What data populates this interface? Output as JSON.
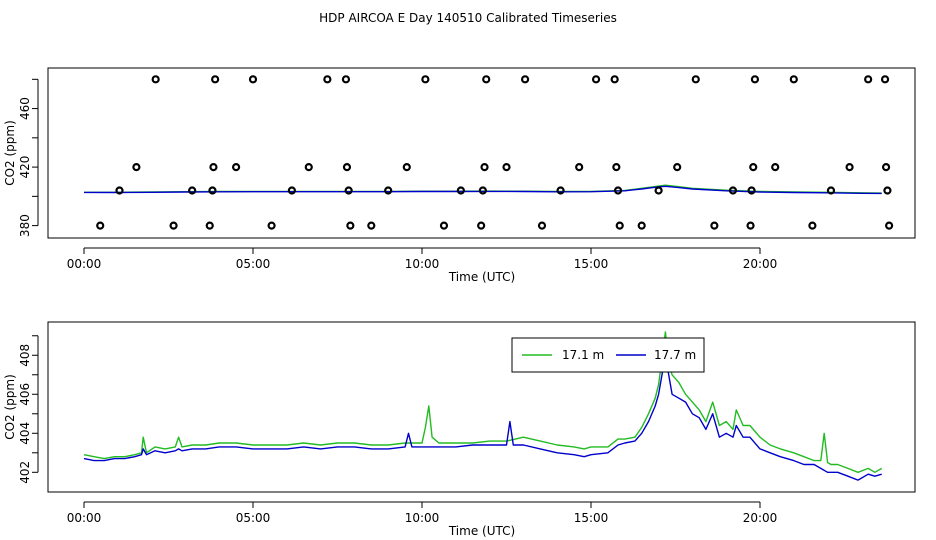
{
  "title": "HDP AIRCOA E  Day 140510  Calibrated Timeseries",
  "chart_data": [
    {
      "type": "scatter",
      "name": "top-panel",
      "xlabel": "Time (UTC)",
      "ylabel": "CO2 (ppm)",
      "xlim": [
        0,
        24
      ],
      "ylim": [
        377,
        485
      ],
      "x_ticks": [
        0,
        5,
        10,
        15,
        20
      ],
      "x_tick_labels": [
        "00:00",
        "05:00",
        "10:00",
        "15:00",
        "20:00"
      ],
      "y_ticks": [
        380,
        420,
        460
      ],
      "y_tick_labels": [
        "380",
        "420",
        "460"
      ],
      "calibration_points": [
        {
          "x": 0.48,
          "y": 380
        },
        {
          "x": 1.05,
          "y": 404
        },
        {
          "x": 1.55,
          "y": 420
        },
        {
          "x": 2.12,
          "y": 480
        },
        {
          "x": 2.65,
          "y": 380
        },
        {
          "x": 3.2,
          "y": 404
        },
        {
          "x": 3.72,
          "y": 380
        },
        {
          "x": 3.8,
          "y": 404
        },
        {
          "x": 3.83,
          "y": 420
        },
        {
          "x": 3.88,
          "y": 480
        },
        {
          "x": 4.5,
          "y": 420
        },
        {
          "x": 5.0,
          "y": 480
        },
        {
          "x": 5.55,
          "y": 380
        },
        {
          "x": 6.15,
          "y": 404
        },
        {
          "x": 6.65,
          "y": 420
        },
        {
          "x": 7.2,
          "y": 480
        },
        {
          "x": 7.75,
          "y": 480
        },
        {
          "x": 7.78,
          "y": 420
        },
        {
          "x": 7.83,
          "y": 404
        },
        {
          "x": 7.88,
          "y": 380
        },
        {
          "x": 8.5,
          "y": 380
        },
        {
          "x": 9.0,
          "y": 404
        },
        {
          "x": 9.55,
          "y": 420
        },
        {
          "x": 10.1,
          "y": 480
        },
        {
          "x": 10.65,
          "y": 380
        },
        {
          "x": 11.15,
          "y": 404
        },
        {
          "x": 11.75,
          "y": 380
        },
        {
          "x": 11.8,
          "y": 404
        },
        {
          "x": 11.85,
          "y": 420
        },
        {
          "x": 11.9,
          "y": 480
        },
        {
          "x": 12.5,
          "y": 420
        },
        {
          "x": 13.05,
          "y": 480
        },
        {
          "x": 13.55,
          "y": 380
        },
        {
          "x": 14.1,
          "y": 404
        },
        {
          "x": 14.65,
          "y": 420
        },
        {
          "x": 15.15,
          "y": 480
        },
        {
          "x": 15.7,
          "y": 480
        },
        {
          "x": 15.75,
          "y": 420
        },
        {
          "x": 15.8,
          "y": 404
        },
        {
          "x": 15.85,
          "y": 380
        },
        {
          "x": 16.5,
          "y": 380
        },
        {
          "x": 17.0,
          "y": 404
        },
        {
          "x": 17.55,
          "y": 420
        },
        {
          "x": 18.1,
          "y": 480
        },
        {
          "x": 18.65,
          "y": 380
        },
        {
          "x": 19.2,
          "y": 404
        },
        {
          "x": 19.72,
          "y": 380
        },
        {
          "x": 19.75,
          "y": 404
        },
        {
          "x": 19.8,
          "y": 420
        },
        {
          "x": 19.85,
          "y": 480
        },
        {
          "x": 20.45,
          "y": 420
        },
        {
          "x": 21.0,
          "y": 480
        },
        {
          "x": 21.55,
          "y": 380
        },
        {
          "x": 22.1,
          "y": 404
        },
        {
          "x": 22.65,
          "y": 420
        },
        {
          "x": 23.2,
          "y": 480
        },
        {
          "x": 23.7,
          "y": 480
        },
        {
          "x": 23.73,
          "y": 420
        },
        {
          "x": 23.77,
          "y": 404
        },
        {
          "x": 23.82,
          "y": 380
        }
      ],
      "series": [
        {
          "name": "17.1 m",
          "color": "#22bb22",
          "x": [
            0,
            1,
            2,
            3,
            4,
            5,
            6,
            7,
            8,
            9,
            10,
            11,
            12,
            13,
            14,
            15,
            16,
            16.5,
            17,
            17.2,
            17.6,
            18,
            19,
            20,
            21,
            22,
            23,
            23.6
          ],
          "values": [
            402.8,
            402.8,
            403.0,
            403.2,
            403.3,
            403.4,
            403.4,
            403.4,
            403.4,
            403.4,
            403.5,
            403.5,
            403.6,
            403.5,
            403.3,
            403.4,
            404.0,
            405.5,
            407.0,
            407.6,
            406.6,
            405.5,
            404.2,
            403.4,
            403.0,
            402.8,
            402.4,
            402.2
          ]
        },
        {
          "name": "17.7 m",
          "color": "#0000cc",
          "x": [
            0,
            1,
            2,
            3,
            4,
            5,
            6,
            7,
            8,
            9,
            10,
            11,
            12,
            13,
            14,
            15,
            16,
            16.5,
            17,
            17.2,
            17.6,
            18,
            19,
            20,
            21,
            22,
            23,
            23.6
          ],
          "values": [
            402.7,
            402.6,
            402.8,
            403.0,
            403.1,
            403.2,
            403.2,
            403.2,
            403.2,
            403.2,
            403.3,
            403.3,
            403.4,
            403.3,
            403.1,
            403.2,
            403.8,
            405.0,
            406.5,
            406.9,
            406.0,
            405.0,
            403.8,
            403.0,
            402.6,
            402.4,
            402.1,
            402.0
          ]
        }
      ]
    },
    {
      "type": "line",
      "name": "bottom-panel",
      "xlabel": "Time (UTC)",
      "ylabel": "CO2 (ppm)",
      "xlim": [
        0,
        24
      ],
      "ylim": [
        401.4,
        409.5
      ],
      "x_ticks": [
        0,
        5,
        10,
        15,
        20
      ],
      "x_tick_labels": [
        "00:00",
        "05:00",
        "10:00",
        "15:00",
        "20:00"
      ],
      "y_ticks": [
        402,
        404,
        406,
        408
      ],
      "y_tick_labels": [
        "402",
        "404",
        "406",
        "408"
      ],
      "legend_position": "top-right",
      "series": [
        {
          "name": "17.1 m",
          "color": "#22bb22",
          "x": [
            0,
            0.3,
            0.6,
            0.9,
            1.2,
            1.5,
            1.7,
            1.75,
            1.85,
            2.1,
            2.4,
            2.7,
            2.8,
            2.9,
            3.2,
            3.6,
            4.0,
            4.5,
            5.0,
            5.5,
            6.0,
            6.5,
            7.0,
            7.5,
            8.0,
            8.5,
            9.0,
            9.5,
            10.0,
            10.1,
            10.2,
            10.3,
            10.5,
            11.0,
            11.5,
            12.0,
            12.5,
            13.0,
            13.5,
            14.0,
            14.5,
            14.8,
            15.0,
            15.5,
            15.8,
            16.0,
            16.3,
            16.5,
            16.7,
            16.9,
            17.0,
            17.1,
            17.2,
            17.3,
            17.4,
            17.6,
            17.8,
            18.0,
            18.2,
            18.4,
            18.6,
            18.8,
            19.0,
            19.2,
            19.3,
            19.5,
            19.7,
            20.0,
            20.3,
            20.6,
            21.0,
            21.3,
            21.6,
            21.8,
            21.9,
            22.0,
            22.1,
            22.3,
            22.6,
            22.9,
            23.2,
            23.4,
            23.6
          ],
          "values": [
            402.9,
            402.8,
            402.7,
            402.8,
            402.8,
            402.9,
            403.0,
            403.8,
            403.0,
            403.3,
            403.2,
            403.3,
            403.8,
            403.3,
            403.4,
            403.4,
            403.5,
            403.5,
            403.4,
            403.4,
            403.4,
            403.5,
            403.4,
            403.5,
            403.5,
            403.4,
            403.4,
            403.5,
            403.5,
            404.3,
            405.4,
            403.8,
            403.5,
            403.5,
            403.5,
            403.6,
            403.6,
            403.8,
            403.6,
            403.4,
            403.3,
            403.2,
            403.3,
            403.3,
            403.7,
            403.7,
            403.8,
            404.3,
            405.0,
            405.8,
            406.5,
            407.8,
            409.2,
            407.6,
            407.0,
            406.6,
            406.0,
            405.6,
            405.2,
            404.6,
            405.6,
            404.4,
            404.6,
            404.2,
            405.2,
            404.4,
            404.4,
            403.8,
            403.4,
            403.2,
            403.0,
            402.8,
            402.6,
            402.6,
            404.0,
            402.5,
            402.4,
            402.4,
            402.2,
            402.0,
            402.2,
            402.0,
            402.2
          ]
        },
        {
          "name": "17.7 m",
          "color": "#0000cc",
          "x": [
            0,
            0.3,
            0.6,
            0.9,
            1.2,
            1.5,
            1.7,
            1.75,
            1.85,
            2.1,
            2.4,
            2.7,
            2.8,
            2.9,
            3.2,
            3.6,
            4.0,
            4.5,
            5.0,
            5.5,
            6.0,
            6.5,
            7.0,
            7.5,
            8.0,
            8.5,
            9.0,
            9.5,
            9.6,
            9.7,
            10.0,
            10.5,
            11.0,
            11.5,
            12.0,
            12.5,
            12.6,
            12.7,
            13.0,
            13.5,
            14.0,
            14.5,
            14.8,
            15.0,
            15.5,
            15.8,
            16.0,
            16.3,
            16.5,
            16.7,
            16.9,
            17.0,
            17.1,
            17.2,
            17.3,
            17.4,
            17.6,
            17.8,
            18.0,
            18.2,
            18.4,
            18.6,
            18.8,
            19.0,
            19.2,
            19.3,
            19.5,
            19.7,
            20.0,
            20.3,
            20.6,
            21.0,
            21.3,
            21.6,
            21.8,
            22.0,
            22.3,
            22.6,
            22.9,
            23.2,
            23.4,
            23.6
          ],
          "values": [
            402.7,
            402.6,
            402.6,
            402.7,
            402.7,
            402.8,
            402.9,
            403.2,
            402.9,
            403.1,
            403.0,
            403.1,
            403.2,
            403.1,
            403.2,
            403.2,
            403.3,
            403.3,
            403.2,
            403.2,
            403.2,
            403.3,
            403.2,
            403.3,
            403.3,
            403.2,
            403.2,
            403.3,
            404.0,
            403.3,
            403.3,
            403.3,
            403.3,
            403.4,
            403.4,
            403.4,
            404.6,
            403.4,
            403.4,
            403.2,
            403.0,
            402.9,
            402.8,
            402.9,
            403.0,
            403.4,
            403.5,
            403.6,
            404.0,
            404.6,
            405.4,
            406.0,
            407.0,
            408.0,
            407.0,
            406.0,
            405.8,
            405.6,
            405.0,
            404.8,
            404.2,
            405.0,
            403.8,
            404.0,
            403.8,
            404.4,
            403.8,
            403.8,
            403.2,
            403.0,
            402.8,
            402.6,
            402.4,
            402.4,
            402.2,
            402.0,
            402.0,
            401.8,
            401.6,
            401.9,
            401.8,
            401.9
          ]
        }
      ]
    }
  ]
}
